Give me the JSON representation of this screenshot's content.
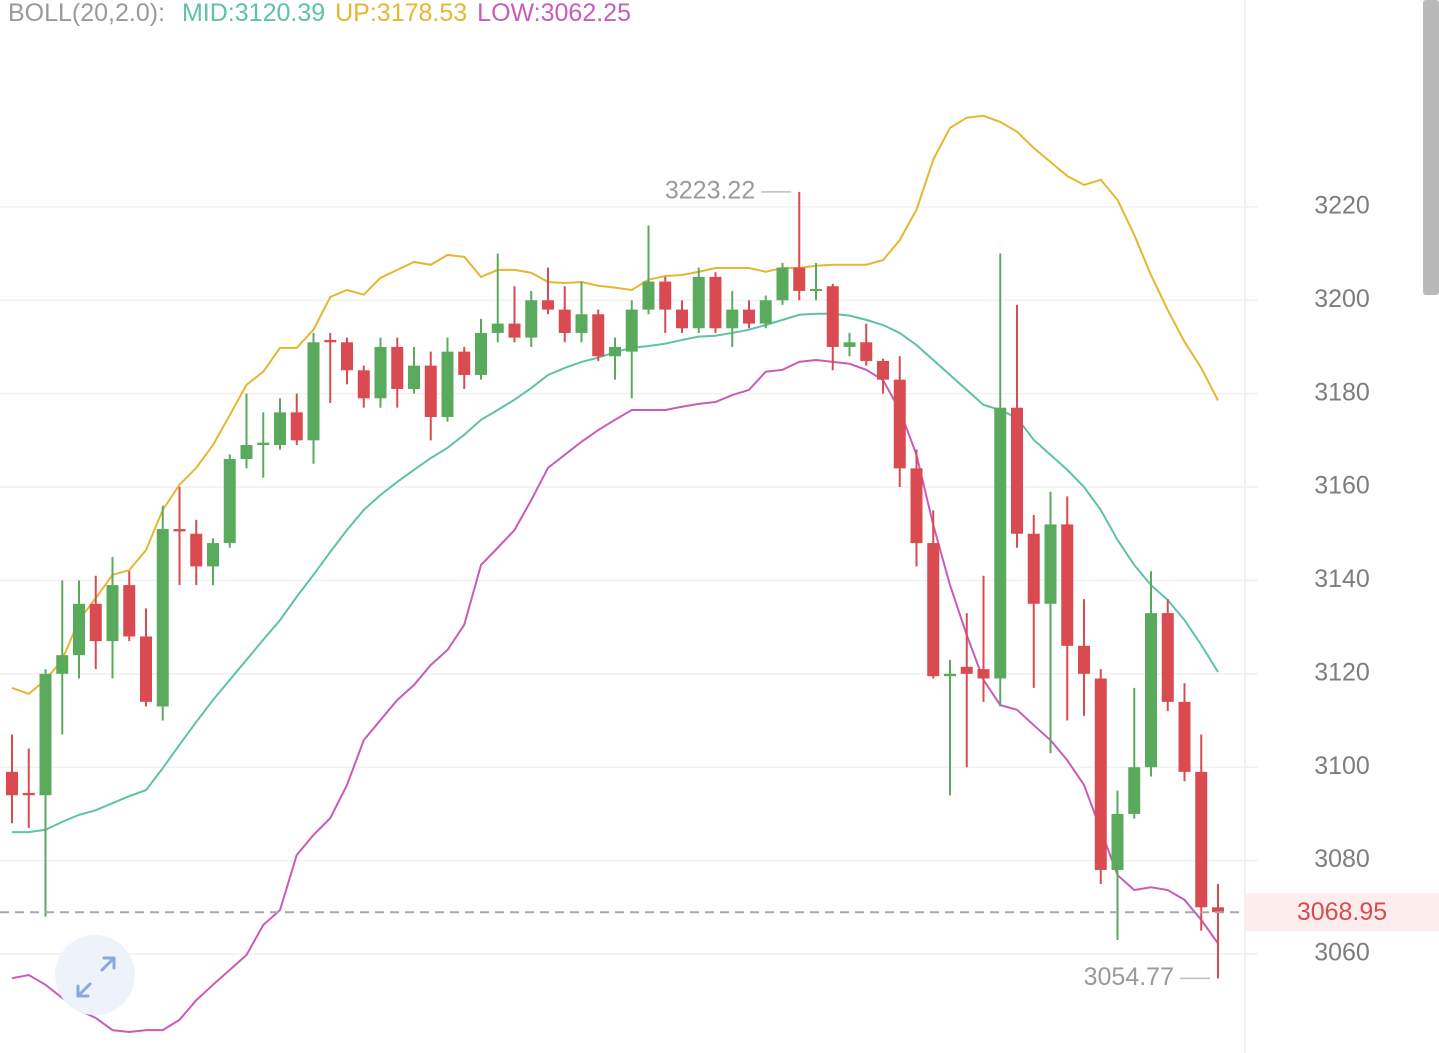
{
  "chart_data": {
    "type": "candlestick",
    "indicator_label": "BOLL(20,2.0):",
    "ylim": [
      3038.8,
      3264.3
    ],
    "yticks": [
      3060,
      3080,
      3100,
      3120,
      3140,
      3160,
      3180,
      3200,
      3220
    ],
    "grid": true,
    "up_color": "#5aaa5e",
    "down_color": "#d94b50",
    "open": [
      3099,
      3094.5,
      3094,
      3120,
      3124,
      3135,
      3127,
      3139,
      3128,
      3113,
      3151,
      3150,
      3143,
      3148,
      3166,
      3169,
      3169,
      3176,
      3170,
      3191.5,
      3191,
      3185,
      3179,
      3190,
      3181,
      3186,
      3175,
      3189,
      3184,
      3193,
      3195,
      3192,
      3200,
      3198,
      3193,
      3197,
      3188,
      3189,
      3198,
      3204,
      3198,
      3194,
      3205,
      3194,
      3198,
      3195,
      3200,
      3207,
      3202,
      3203,
      3190,
      3191,
      3187,
      3183,
      3164,
      3148,
      3119.5,
      3121.5,
      3121,
      3119,
      3177,
      3150,
      3135,
      3152,
      3126,
      3119,
      3078,
      3090,
      3100,
      3133,
      3114,
      3099,
      3070
    ],
    "high": [
      3107,
      3104,
      3121,
      3140,
      3140,
      3141,
      3145,
      3142,
      3134,
      3156,
      3160,
      3153,
      3149,
      3167,
      3180,
      3176,
      3179,
      3180,
      3193,
      3193,
      3192,
      3186,
      3192,
      3192,
      3190,
      3189,
      3192,
      3190,
      3196,
      3210,
      3203,
      3202,
      3207,
      3203,
      3204,
      3198,
      3192,
      3200,
      3216,
      3205,
      3200,
      3207,
      3206,
      3202,
      3200,
      3201,
      3208,
      3223.22,
      3208,
      3203.5,
      3193,
      3195,
      3187.5,
      3188,
      3168,
      3155,
      3123,
      3133,
      3141,
      3210,
      3199,
      3154,
      3159,
      3158,
      3136,
      3121,
      3095,
      3117,
      3142,
      3136,
      3118,
      3107,
      3075
    ],
    "low": [
      3088,
      3087,
      3068,
      3107,
      3119,
      3121,
      3119,
      3127,
      3113,
      3110,
      3139,
      3139,
      3139,
      3147,
      3164,
      3162,
      3168,
      3169,
      3165,
      3178,
      3182,
      3177,
      3177,
      3177,
      3180,
      3170,
      3174,
      3181,
      3183,
      3191,
      3191,
      3190,
      3197,
      3191,
      3191,
      3187,
      3183,
      3179,
      3197,
      3193,
      3193,
      3193,
      3193,
      3190,
      3194,
      3194,
      3199,
      3200,
      3200,
      3185,
      3188,
      3186,
      3180,
      3160,
      3143,
      3119,
      3094,
      3100,
      3114,
      3113,
      3147,
      3117,
      3103,
      3110,
      3111,
      3075,
      3063,
      3089,
      3098,
      3112,
      3097,
      3065,
      3054.77
    ],
    "close": [
      3094,
      3094,
      3120,
      3124,
      3135,
      3127,
      3139,
      3128,
      3114,
      3151,
      3150.5,
      3143,
      3148,
      3166,
      3169,
      3169.5,
      3176,
      3170,
      3191,
      3191,
      3185,
      3179,
      3190,
      3181,
      3186,
      3175,
      3189,
      3184,
      3193,
      3195,
      3192,
      3200,
      3198,
      3193,
      3197,
      3188,
      3190,
      3198,
      3204,
      3198,
      3194,
      3205,
      3194,
      3198,
      3195,
      3200,
      3207,
      3202,
      3202.4,
      3190,
      3191,
      3187,
      3183,
      3164,
      3148,
      3119.5,
      3120,
      3120,
      3119,
      3177,
      3150,
      3135,
      3152,
      3126,
      3120,
      3078,
      3090,
      3100,
      3133,
      3114,
      3099,
      3070,
      3068.95
    ],
    "series": [
      {
        "name": "MID:3120.39",
        "color": "#5dc2a6",
        "values": [
          3086.1,
          3086.1,
          3086.6,
          3088.3,
          3089.8,
          3090.8,
          3092.3,
          3093.8,
          3095.1,
          3099.8,
          3104.8,
          3109.7,
          3114.4,
          3118.7,
          3123.0,
          3127.3,
          3131.5,
          3136.5,
          3141.2,
          3146.1,
          3150.8,
          3155.1,
          3158.3,
          3161.1,
          3163.7,
          3166.2,
          3168.4,
          3171.2,
          3174.4,
          3176.5,
          3178.7,
          3181.2,
          3184.0,
          3185.5,
          3186.8,
          3187.7,
          3188.9,
          3189.8,
          3190.2,
          3190.7,
          3191.5,
          3192.2,
          3192.4,
          3193.0,
          3193.7,
          3194.7,
          3195.8,
          3196.9,
          3197.1,
          3197.1,
          3196.7,
          3195.8,
          3194.7,
          3193.0,
          3190.4,
          3187.2,
          3184.0,
          3180.8,
          3177.6,
          3176.5,
          3174.8,
          3170.1,
          3166.9,
          3163.7,
          3160.0,
          3155.1,
          3148.7,
          3143.3,
          3139.0,
          3135.8,
          3131.5,
          3126.2,
          3120.39
        ]
      },
      {
        "name": "UP:3178.53",
        "color": "#e5b731",
        "values": [
          3117.0,
          3115.7,
          3118.7,
          3123.0,
          3131.5,
          3136.2,
          3141.2,
          3142.2,
          3146.5,
          3155.1,
          3160.5,
          3164.1,
          3169.0,
          3175.4,
          3181.9,
          3184.7,
          3189.8,
          3189.8,
          3193.7,
          3200.7,
          3202.2,
          3201.2,
          3204.8,
          3206.5,
          3208.2,
          3207.6,
          3209.7,
          3209.3,
          3205.0,
          3206.5,
          3206.5,
          3205.9,
          3203.9,
          3203.7,
          3203.9,
          3203.1,
          3202.7,
          3202.2,
          3204.4,
          3205.2,
          3205.4,
          3206.1,
          3206.9,
          3206.9,
          3206.9,
          3206.1,
          3206.9,
          3206.9,
          3207.4,
          3207.6,
          3207.6,
          3207.6,
          3208.6,
          3212.9,
          3219.4,
          3230.1,
          3236.9,
          3239.1,
          3239.5,
          3238.2,
          3236.1,
          3232.6,
          3229.6,
          3226.6,
          3224.7,
          3225.8,
          3221.5,
          3214.0,
          3205.4,
          3197.9,
          3191.1,
          3185.5,
          3178.53
        ]
      },
      {
        "name": "LOW:3062.25",
        "color": "#c95cb6",
        "values": [
          3054.8,
          3055.5,
          3053.4,
          3050.6,
          3048.0,
          3046.3,
          3043.7,
          3043.3,
          3043.7,
          3043.7,
          3045.9,
          3050.1,
          3053.4,
          3056.6,
          3059.8,
          3066.2,
          3069.4,
          3081.2,
          3085.5,
          3089.1,
          3096.2,
          3105.8,
          3110.1,
          3114.4,
          3117.6,
          3121.9,
          3125.1,
          3130.5,
          3143.3,
          3147.0,
          3150.8,
          3157.2,
          3164.1,
          3166.9,
          3169.7,
          3172.2,
          3174.4,
          3176.5,
          3176.5,
          3176.5,
          3177.2,
          3177.8,
          3178.2,
          3179.7,
          3180.8,
          3184.7,
          3185.1,
          3186.8,
          3187.2,
          3186.8,
          3186.4,
          3185.1,
          3182.9,
          3176.5,
          3166.9,
          3151.9,
          3139.0,
          3128.3,
          3118.7,
          3113.3,
          3112.3,
          3109.0,
          3105.8,
          3101.5,
          3096.2,
          3086.6,
          3076.9,
          3073.7,
          3074.3,
          3073.7,
          3071.6,
          3067.3,
          3062.25
        ]
      }
    ]
  }
}
